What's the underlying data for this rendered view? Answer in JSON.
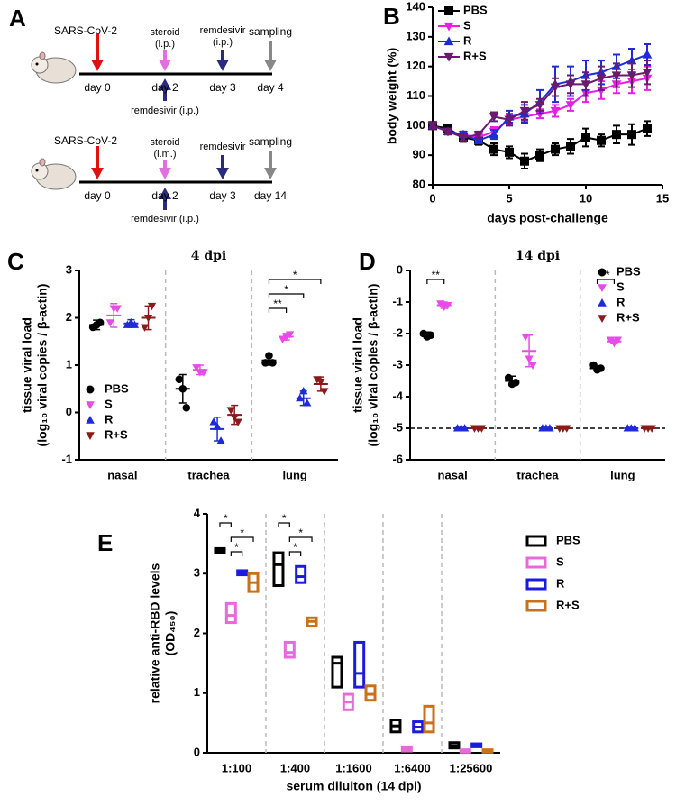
{
  "diagram": {
    "panel_label": "A",
    "timelines": [
      {
        "infection": "SARS-CoV-2",
        "steroid": "steroid",
        "steroid_route": "(i.p.)",
        "remdesivir": "remdesivir",
        "remdesivir_route": "(i.p.)",
        "sampling": "sampling",
        "days": [
          "day 0",
          "day 2",
          "day 3",
          "day 4"
        ],
        "below": "remdesivir (i.p.)"
      },
      {
        "infection": "SARS-CoV-2",
        "steroid": "steroid",
        "steroid_route": "(i.m.)",
        "remdesivir": "remdesivir",
        "sampling": "sampling",
        "days": [
          "day 0",
          "day 2",
          "day 3",
          "day 14"
        ],
        "below": "remdesivir (i.p.)"
      }
    ]
  },
  "chart_data": [
    {
      "type": "line",
      "panel_label": "B",
      "xlabel": "days post-challenge",
      "ylabel": "body weight (%)",
      "x": [
        0,
        1,
        2,
        3,
        4,
        5,
        6,
        7,
        8,
        9,
        10,
        11,
        12,
        13,
        14
      ],
      "xlim": [
        0,
        15
      ],
      "xticks": [
        0,
        5,
        10,
        15
      ],
      "ylim": [
        80,
        140
      ],
      "yticks": [
        80,
        90,
        100,
        110,
        120,
        130,
        140
      ],
      "legend": "upper left",
      "series": [
        {
          "name": "PBS",
          "color": "#000000",
          "marker": "square",
          "values": [
            100,
            99,
            96,
            95,
            92,
            91,
            88,
            90,
            92,
            93,
            96,
            95,
            97,
            97,
            99
          ],
          "errors": [
            1,
            1,
            1.5,
            1.5,
            2,
            2,
            2.5,
            2,
            2,
            2.5,
            3,
            2,
            3,
            3.5,
            2.5
          ]
        },
        {
          "name": "S",
          "color": "#e81ee8",
          "marker": "triangle-down",
          "values": [
            100,
            98,
            97,
            96,
            98,
            102,
            103,
            104,
            105,
            107,
            111,
            112,
            114,
            115,
            116
          ],
          "errors": [
            1,
            1,
            1,
            1,
            1.5,
            1.5,
            1.5,
            1.5,
            2,
            2,
            3,
            3,
            3,
            4,
            4
          ]
        },
        {
          "name": "R",
          "color": "#1f2bd6",
          "marker": "triangle-up",
          "values": [
            100,
            98,
            97,
            95,
            97,
            103,
            104,
            108,
            114,
            115,
            117,
            118,
            120,
            122,
            124
          ],
          "errors": [
            1,
            1,
            1,
            1,
            1.5,
            2,
            3,
            4,
            6,
            5,
            5,
            4,
            4,
            4,
            3.5
          ]
        },
        {
          "name": "R+S",
          "color": "#6a1b6e",
          "marker": "triangle-down",
          "values": [
            100,
            98,
            96,
            97,
            103,
            102,
            105,
            107,
            113,
            114,
            114,
            116,
            117,
            117,
            118
          ],
          "errors": [
            1,
            1,
            1,
            1,
            1.5,
            2,
            3,
            2,
            3,
            3,
            4,
            4,
            4,
            4,
            4
          ]
        }
      ]
    },
    {
      "type": "strip",
      "panel_label": "C",
      "title": "4 dpi",
      "ylabel": [
        "tissue viral load",
        "(log₁₀ viral copies / β-actin)"
      ],
      "categories": [
        "nasal",
        "trachea",
        "lung"
      ],
      "ylim": [
        -1,
        3
      ],
      "yticks": [
        -1,
        0,
        1,
        2,
        3
      ],
      "legend": "lower left",
      "separators": true,
      "series": [
        {
          "name": "PBS",
          "color": "#000000",
          "marker": "circle",
          "values": [
            1.85,
            0.5,
            1.1
          ],
          "errors": [
            0.1,
            0.3,
            0.1
          ],
          "points": [
            [
              1.8,
              1.85,
              1.9
            ],
            [
              0.7,
              0.5,
              0.1
            ],
            [
              1.05,
              1.2,
              1.05
            ]
          ]
        },
        {
          "name": "S",
          "color": "#e64ce6",
          "marker": "triangle-down",
          "values": [
            2.05,
            0.9,
            1.6
          ],
          "errors": [
            0.25,
            0.1,
            0.07
          ],
          "points": [
            [
              1.9,
              2.2,
              2.2
            ],
            [
              0.95,
              0.85,
              0.85
            ],
            [
              1.55,
              1.6,
              1.65
            ]
          ]
        },
        {
          "name": "R",
          "color": "#1f2bd6",
          "marker": "triangle-up",
          "values": [
            1.88,
            -0.35,
            0.3
          ],
          "errors": [
            0.08,
            0.25,
            0.15
          ],
          "points": [
            [
              1.85,
              1.9,
              1.85
            ],
            [
              -0.2,
              -0.3,
              -0.6
            ],
            [
              0.3,
              0.45,
              0.2
            ]
          ]
        },
        {
          "name": "R+S",
          "color": "#8b1a1a",
          "marker": "triangle-down",
          "values": [
            2.0,
            -0.05,
            0.6
          ],
          "errors": [
            0.25,
            0.2,
            0.15
          ],
          "points": [
            [
              1.8,
              2.0,
              2.25
            ],
            [
              0.05,
              -0.1,
              -0.2
            ],
            [
              0.7,
              0.65,
              0.45
            ]
          ]
        }
      ],
      "significance": [
        {
          "category": 2,
          "from": 0,
          "to": 3,
          "text": "*"
        },
        {
          "category": 2,
          "from": 0,
          "to": 2,
          "text": "*"
        },
        {
          "category": 2,
          "from": 0,
          "to": 1,
          "text": "**"
        }
      ]
    },
    {
      "type": "strip",
      "panel_label": "D",
      "title": "14 dpi",
      "ylabel": [
        "tissue viral load",
        "(log₁₀ viral copies / β-actin)"
      ],
      "categories": [
        "nasal",
        "trachea",
        "lung"
      ],
      "ylim": [
        -6,
        0
      ],
      "yticks": [
        -6,
        -5,
        -4,
        -3,
        -2,
        -1,
        0
      ],
      "legend": "upper right",
      "separators": true,
      "reference_line": -5,
      "series": [
        {
          "name": "PBS",
          "color": "#000000",
          "marker": "circle",
          "values": [
            -2.05,
            -3.5,
            -3.1
          ],
          "errors": [
            0.1,
            0.15,
            0.08
          ],
          "points": [
            [
              -2.0,
              -2.1,
              -2.05
            ],
            [
              -3.4,
              -3.6,
              -3.55
            ],
            [
              -3.0,
              -3.15,
              -3.1
            ]
          ]
        },
        {
          "name": "S",
          "color": "#e64ce6",
          "marker": "triangle-down",
          "values": [
            -1.1,
            -2.55,
            -2.25
          ],
          "errors": [
            0.1,
            0.5,
            0.07
          ],
          "points": [
            [
              -1.05,
              -1.15,
              -1.1
            ],
            [
              -2.1,
              -2.8,
              -3.0
            ],
            [
              -2.2,
              -2.3,
              -2.2
            ]
          ]
        },
        {
          "name": "R",
          "color": "#1f2bd6",
          "marker": "triangle-up",
          "values": [
            -5,
            -5,
            -5
          ],
          "errors": [
            0,
            0,
            0
          ],
          "points": [
            [
              -5,
              -5,
              -5
            ],
            [
              -5,
              -5,
              -5
            ],
            [
              -5,
              -5,
              -5
            ]
          ]
        },
        {
          "name": "R+S",
          "color": "#8b1a1a",
          "marker": "triangle-down",
          "values": [
            -5,
            -5,
            -5
          ],
          "errors": [
            0,
            0,
            0
          ],
          "points": [
            [
              -5,
              -5,
              -5
            ],
            [
              -5,
              -5,
              -5
            ],
            [
              -5,
              -5,
              -5
            ]
          ]
        }
      ],
      "significance": [
        {
          "category": 0,
          "from": 0,
          "to": 1,
          "text": "**"
        },
        {
          "category": 2,
          "from": 0,
          "to": 1,
          "text": "**"
        }
      ]
    },
    {
      "type": "floating_bar",
      "panel_label": "E",
      "xlabel": "serum diluiton (14 dpi)",
      "ylabel": [
        "relative anti-RBD levels",
        "(OD₄₅₀)"
      ],
      "categories": [
        "1:100",
        "1:400",
        "1:1600",
        "1:6400",
        "1:25600"
      ],
      "ylim": [
        0,
        4
      ],
      "yticks": [
        0,
        1,
        2,
        3,
        4
      ],
      "legend": "right",
      "separators": true,
      "series": [
        {
          "name": "PBS",
          "color": "#000000",
          "values": [
            3.38,
            3.15,
            1.5,
            0.45,
            0.12
          ],
          "low": [
            3.35,
            2.8,
            1.1,
            0.35,
            0.08
          ],
          "high": [
            3.42,
            3.35,
            1.6,
            0.55,
            0.17
          ]
        },
        {
          "name": "S",
          "color": "#e86ad8",
          "values": [
            2.3,
            1.68,
            0.85,
            0.07,
            0.03
          ],
          "low": [
            2.18,
            1.6,
            0.72,
            0.03,
            0.01
          ],
          "high": [
            2.5,
            1.85,
            0.98,
            0.1,
            0.05
          ]
        },
        {
          "name": "R",
          "color": "#1a1ae0",
          "values": [
            3.0,
            2.95,
            1.33,
            0.43,
            0.12
          ],
          "low": [
            2.98,
            2.85,
            1.1,
            0.35,
            0.1
          ],
          "high": [
            3.05,
            3.12,
            1.85,
            0.52,
            0.15
          ]
        },
        {
          "name": "R+S",
          "color": "#c8701a",
          "values": [
            2.85,
            2.2,
            0.98,
            0.5,
            0.03
          ],
          "low": [
            2.7,
            2.12,
            0.88,
            0.35,
            0.01
          ],
          "high": [
            3.0,
            2.26,
            1.12,
            0.78,
            0.05
          ]
        }
      ],
      "significance": [
        {
          "category": 0,
          "from": 0,
          "to": 1,
          "text": "*"
        },
        {
          "category": 0,
          "from": 1,
          "to": 3,
          "text": "*"
        },
        {
          "category": 0,
          "from": 1,
          "to": 2,
          "text": "*"
        },
        {
          "category": 1,
          "from": 0,
          "to": 1,
          "text": "*"
        },
        {
          "category": 1,
          "from": 1,
          "to": 3,
          "text": "*"
        },
        {
          "category": 1,
          "from": 1,
          "to": 2,
          "text": "*"
        }
      ]
    }
  ]
}
